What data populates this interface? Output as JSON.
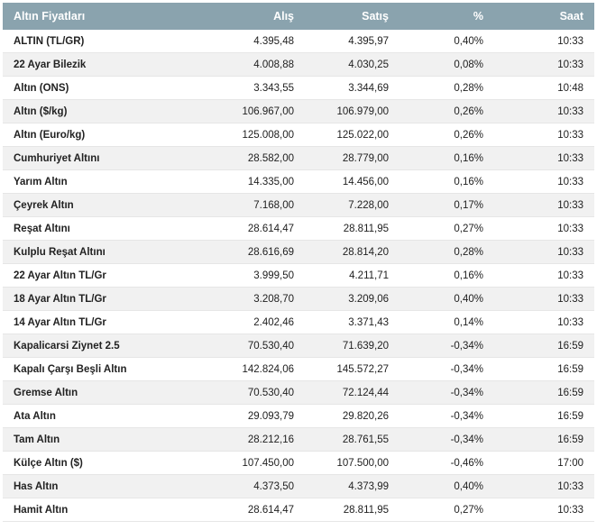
{
  "headers": {
    "name": "Altın Fiyatları",
    "buy": "Alış",
    "sell": "Satış",
    "pct": "%",
    "time": "Saat"
  },
  "rows": [
    {
      "name": "ALTIN (TL/GR)",
      "buy": "4.395,48",
      "sell": "4.395,97",
      "pct": "0,40%",
      "time": "10:33"
    },
    {
      "name": "22 Ayar Bilezik",
      "buy": "4.008,88",
      "sell": "4.030,25",
      "pct": "0,08%",
      "time": "10:33"
    },
    {
      "name": "Altın (ONS)",
      "buy": "3.343,55",
      "sell": "3.344,69",
      "pct": "0,28%",
      "time": "10:48"
    },
    {
      "name": "Altın ($/kg)",
      "buy": "106.967,00",
      "sell": "106.979,00",
      "pct": "0,26%",
      "time": "10:33"
    },
    {
      "name": "Altın (Euro/kg)",
      "buy": "125.008,00",
      "sell": "125.022,00",
      "pct": "0,26%",
      "time": "10:33"
    },
    {
      "name": "Cumhuriyet Altını",
      "buy": "28.582,00",
      "sell": "28.779,00",
      "pct": "0,16%",
      "time": "10:33"
    },
    {
      "name": "Yarım Altın",
      "buy": "14.335,00",
      "sell": "14.456,00",
      "pct": "0,16%",
      "time": "10:33"
    },
    {
      "name": "Çeyrek Altın",
      "buy": "7.168,00",
      "sell": "7.228,00",
      "pct": "0,17%",
      "time": "10:33"
    },
    {
      "name": "Reşat Altını",
      "buy": "28.614,47",
      "sell": "28.811,95",
      "pct": "0,27%",
      "time": "10:33"
    },
    {
      "name": "Kulplu Reşat Altını",
      "buy": "28.616,69",
      "sell": "28.814,20",
      "pct": "0,28%",
      "time": "10:33"
    },
    {
      "name": "22 Ayar Altın TL/Gr",
      "buy": "3.999,50",
      "sell": "4.211,71",
      "pct": "0,16%",
      "time": "10:33"
    },
    {
      "name": "18 Ayar Altın TL/Gr",
      "buy": "3.208,70",
      "sell": "3.209,06",
      "pct": "0,40%",
      "time": "10:33"
    },
    {
      "name": "14 Ayar Altın TL/Gr",
      "buy": "2.402,46",
      "sell": "3.371,43",
      "pct": "0,14%",
      "time": "10:33"
    },
    {
      "name": "Kapalicarsi Ziynet 2.5",
      "buy": "70.530,40",
      "sell": "71.639,20",
      "pct": "-0,34%",
      "time": "16:59"
    },
    {
      "name": "Kapalı Çarşı Beşli Altın",
      "buy": "142.824,06",
      "sell": "145.572,27",
      "pct": "-0,34%",
      "time": "16:59"
    },
    {
      "name": "Gremse Altın",
      "buy": "70.530,40",
      "sell": "72.124,44",
      "pct": "-0,34%",
      "time": "16:59"
    },
    {
      "name": "Ata Altın",
      "buy": "29.093,79",
      "sell": "29.820,26",
      "pct": "-0,34%",
      "time": "16:59"
    },
    {
      "name": "Tam Altın",
      "buy": "28.212,16",
      "sell": "28.761,55",
      "pct": "-0,34%",
      "time": "16:59"
    },
    {
      "name": "Külçe Altın ($)",
      "buy": "107.450,00",
      "sell": "107.500,00",
      "pct": "-0,46%",
      "time": "17:00"
    },
    {
      "name": "Has Altın",
      "buy": "4.373,50",
      "sell": "4.373,99",
      "pct": "0,40%",
      "time": "10:33"
    },
    {
      "name": "Hamit Altın",
      "buy": "28.614,47",
      "sell": "28.811,95",
      "pct": "0,27%",
      "time": "10:33"
    }
  ],
  "colors": {
    "header_bg": "#8aa3ae",
    "row_alt_bg": "#f1f1f1"
  }
}
